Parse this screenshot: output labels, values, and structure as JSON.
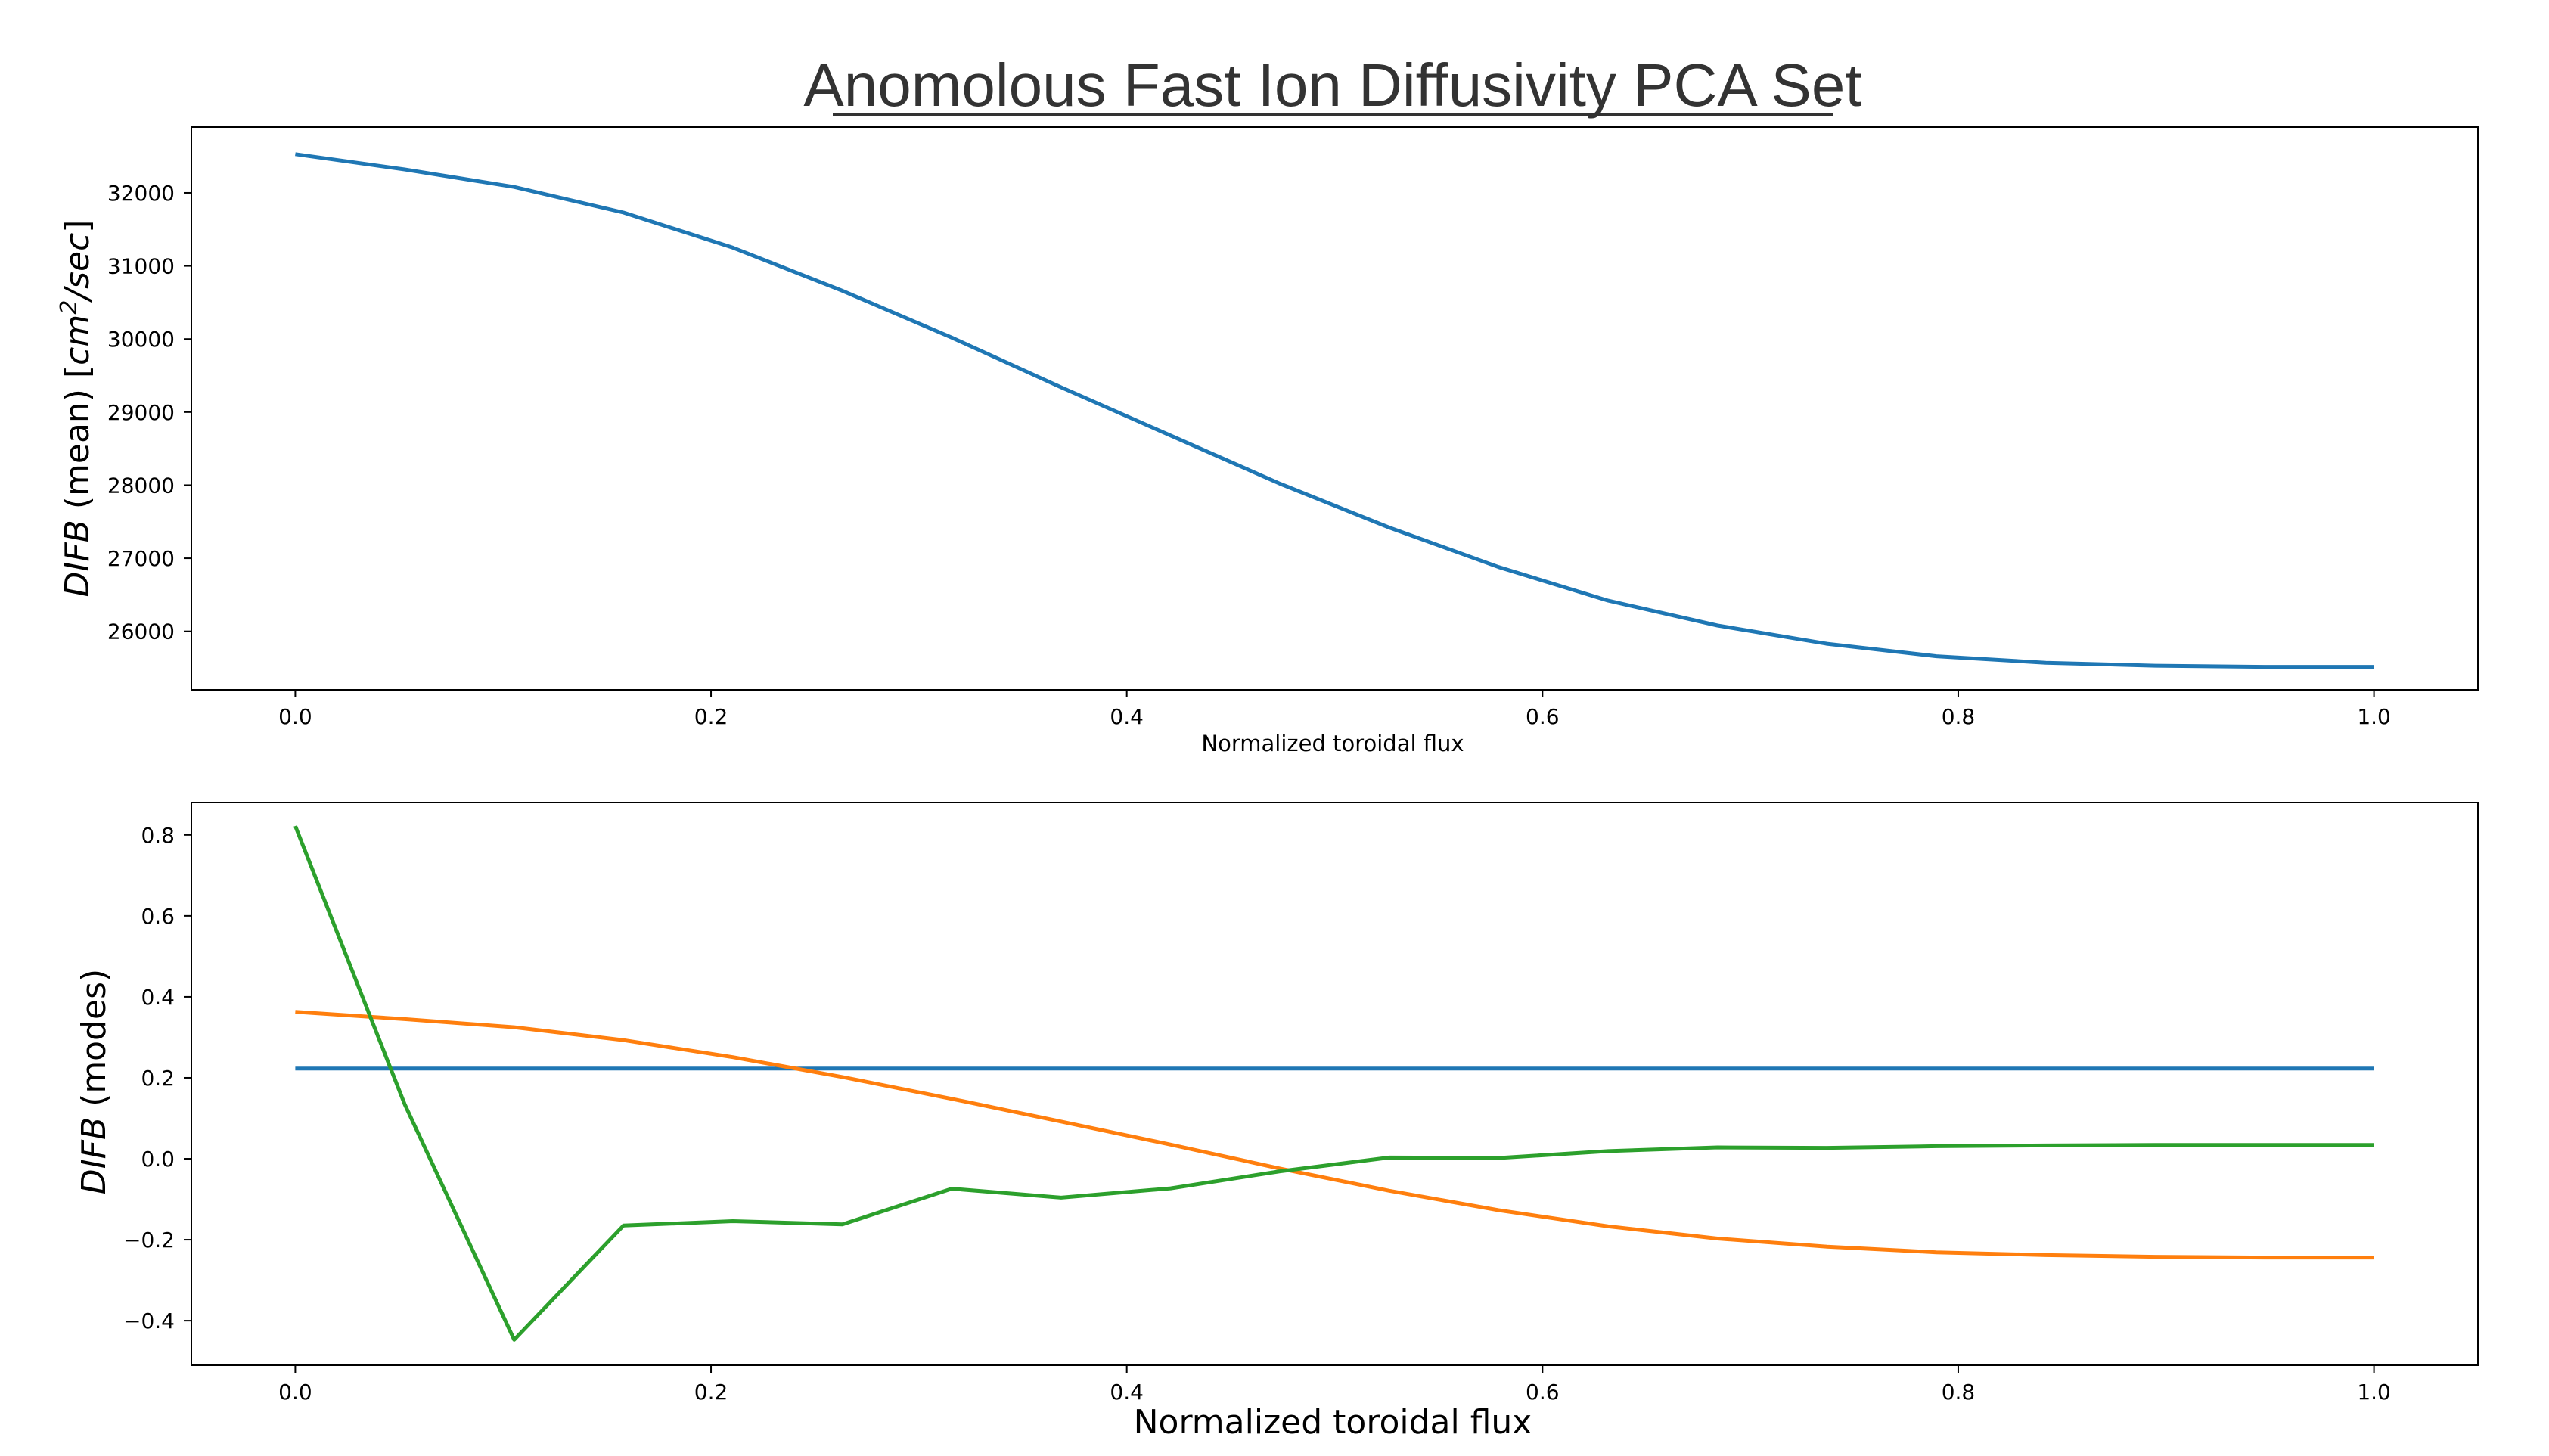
{
  "title": "Anomolous Fast Ion Diffusivity PCA Set",
  "colors": {
    "mode1": "#1f77b4",
    "mode2": "#ff7f0e",
    "mode3": "#2ca02c",
    "title": "#333333"
  },
  "chart_data": [
    {
      "type": "line",
      "title": "",
      "xlabel": "Normalized toroidal flux",
      "ylabel_italic": "DIFB",
      "ylabel_plain": " (mean) [",
      "ylabel_unit": "cm",
      "ylabel_sup": "2",
      "ylabel_unit_tail": "/sec",
      "ylabel_close": "]",
      "xlim": [
        -0.05,
        1.05
      ],
      "ylim": [
        25200,
        32900
      ],
      "xticks": [
        0.0,
        0.2,
        0.4,
        0.6,
        0.8,
        1.0
      ],
      "xtick_labels": [
        "0.0",
        "0.2",
        "0.4",
        "0.6",
        "0.8",
        "1.0"
      ],
      "yticks": [
        26000,
        27000,
        28000,
        29000,
        30000,
        31000,
        32000
      ],
      "ytick_labels": [
        "26000",
        "27000",
        "28000",
        "29000",
        "30000",
        "31000",
        "32000"
      ],
      "grid": false,
      "series": [
        {
          "color": "#1f77b4",
          "x": [
            0.0,
            0.0526,
            0.1053,
            0.1579,
            0.2105,
            0.2632,
            0.3158,
            0.3684,
            0.4211,
            0.4737,
            0.5263,
            0.5789,
            0.6316,
            0.6842,
            0.7368,
            0.7895,
            0.8421,
            0.8947,
            0.9474,
            1.0
          ],
          "y": [
            32530,
            32320,
            32080,
            31730,
            31250,
            30660,
            30020,
            29340,
            28680,
            28020,
            27420,
            26880,
            26420,
            26080,
            25830,
            25660,
            25570,
            25530,
            25515,
            25515
          ]
        }
      ]
    },
    {
      "type": "line",
      "title": "",
      "xlabel": "Normalized toroidal flux",
      "ylabel_italic": "DIFB",
      "ylabel_plain": " (modes)",
      "xlim": [
        -0.05,
        1.05
      ],
      "ylim": [
        -0.51,
        0.88
      ],
      "xticks": [
        0.0,
        0.2,
        0.4,
        0.6,
        0.8,
        1.0
      ],
      "xtick_labels": [
        "0.0",
        "0.2",
        "0.4",
        "0.6",
        "0.8",
        "1.0"
      ],
      "yticks": [
        -0.4,
        -0.2,
        0.0,
        0.2,
        0.4,
        0.6,
        0.8
      ],
      "ytick_labels": [
        "−0.4",
        "−0.2",
        "0.0",
        "0.2",
        "0.4",
        "0.6",
        "0.8"
      ],
      "grid": false,
      "series": [
        {
          "color": "#1f77b4",
          "x": [
            0.0,
            0.0526,
            0.1053,
            0.1579,
            0.2105,
            0.2632,
            0.3158,
            0.3684,
            0.4211,
            0.4737,
            0.5263,
            0.5789,
            0.6316,
            0.6842,
            0.7368,
            0.7895,
            0.8421,
            0.8947,
            0.9474,
            1.0
          ],
          "y": [
            0.223,
            0.223,
            0.223,
            0.223,
            0.223,
            0.223,
            0.223,
            0.223,
            0.223,
            0.223,
            0.223,
            0.223,
            0.223,
            0.223,
            0.223,
            0.223,
            0.223,
            0.223,
            0.223,
            0.223
          ]
        },
        {
          "color": "#ff7f0e",
          "x": [
            0.0,
            0.0526,
            0.1053,
            0.1579,
            0.2105,
            0.2632,
            0.3158,
            0.3684,
            0.4211,
            0.4737,
            0.5263,
            0.5789,
            0.6316,
            0.6842,
            0.7368,
            0.7895,
            0.8421,
            0.8947,
            0.9474,
            1.0
          ],
          "y": [
            0.363,
            0.345,
            0.325,
            0.293,
            0.251,
            0.202,
            0.148,
            0.092,
            0.035,
            -0.024,
            -0.079,
            -0.127,
            -0.167,
            -0.197,
            -0.217,
            -0.231,
            -0.238,
            -0.242,
            -0.244,
            -0.244
          ]
        },
        {
          "color": "#2ca02c",
          "x": [
            0.0,
            0.0526,
            0.1053,
            0.1579,
            0.2105,
            0.2632,
            0.3158,
            0.3684,
            0.4211,
            0.4737,
            0.5263,
            0.5789,
            0.6316,
            0.6842,
            0.7368,
            0.7895,
            0.8421,
            0.8947,
            0.9474,
            1.0
          ],
          "y": [
            0.822,
            0.135,
            -0.447,
            -0.165,
            -0.154,
            -0.162,
            -0.074,
            -0.096,
            -0.073,
            -0.031,
            0.003,
            0.002,
            0.019,
            0.028,
            0.027,
            0.031,
            0.033,
            0.034,
            0.034,
            0.034
          ]
        }
      ]
    }
  ]
}
